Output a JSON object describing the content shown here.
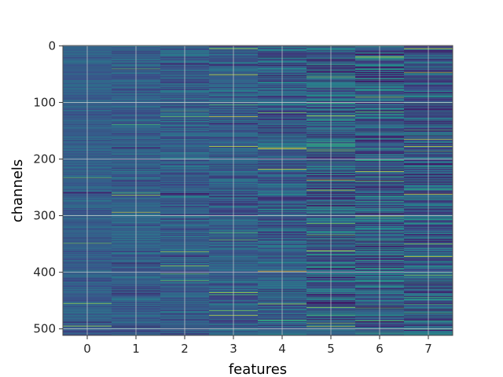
{
  "chart_data": {
    "type": "heatmap",
    "title": "",
    "xlabel": "features",
    "ylabel": "channels",
    "x_categories": [
      0,
      1,
      2,
      3,
      4,
      5,
      6,
      7
    ],
    "y_range": [
      0,
      511
    ],
    "y_ticks": [
      0,
      100,
      200,
      300,
      400,
      500
    ],
    "rows": 512,
    "colormap": "viridis",
    "grid": true,
    "column_contrast": [
      0.35,
      0.45,
      0.5,
      0.55,
      0.75,
      0.95,
      1.0,
      0.9
    ],
    "highlight_channels": [
      {
        "feature": 3,
        "channel": 125
      },
      {
        "feature": 4,
        "channel": 182
      },
      {
        "feature": 4,
        "channel": 218
      },
      {
        "feature": 4,
        "channel": 398
      },
      {
        "feature": 5,
        "channel": 362
      },
      {
        "feature": 6,
        "channel": 20
      },
      {
        "feature": 6,
        "channel": 222
      },
      {
        "feature": 7,
        "channel": 5
      },
      {
        "feature": 7,
        "channel": 262
      },
      {
        "feature": 7,
        "channel": 372
      }
    ]
  }
}
